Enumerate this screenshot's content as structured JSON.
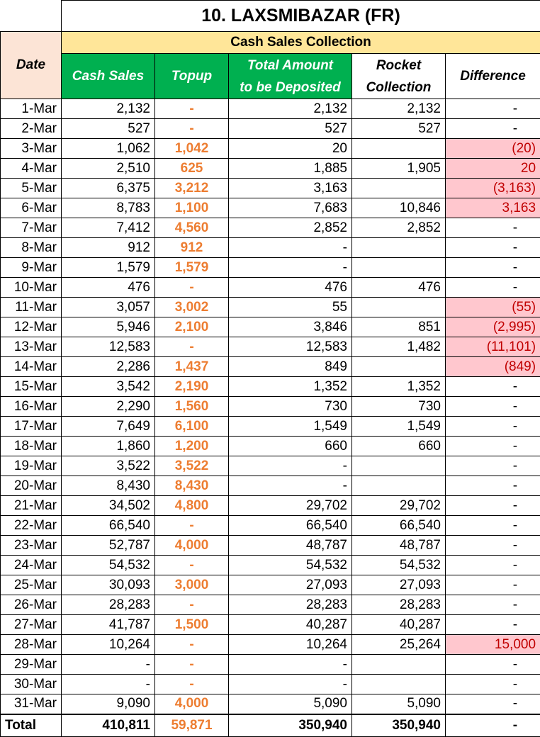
{
  "title": "10. LAXSMIBAZAR (FR)",
  "group_header": "Cash Sales Collection",
  "columns": [
    "Date",
    "Cash Sales",
    "Topup",
    "Total Amount\nto be Deposited",
    "Rocket\nCollection",
    "Difference"
  ],
  "rows": [
    [
      "1-Mar",
      "2,132",
      "-",
      "2,132",
      "2,132",
      "-"
    ],
    [
      "2-Mar",
      "527",
      "-",
      "527",
      "527",
      "-"
    ],
    [
      "3-Mar",
      "1,062",
      "1,042",
      "20",
      null,
      "(20)"
    ],
    [
      "4-Mar",
      "2,510",
      "625",
      "1,885",
      "1,905",
      "20"
    ],
    [
      "5-Mar",
      "6,375",
      "3,212",
      "3,163",
      null,
      "(3,163)"
    ],
    [
      "6-Mar",
      "8,783",
      "1,100",
      "7,683",
      "10,846",
      "3,163"
    ],
    [
      "7-Mar",
      "7,412",
      "4,560",
      "2,852",
      "2,852",
      "-"
    ],
    [
      "8-Mar",
      "912",
      "912",
      "-",
      null,
      "-"
    ],
    [
      "9-Mar",
      "1,579",
      "1,579",
      "-",
      null,
      "-"
    ],
    [
      "10-Mar",
      "476",
      "-",
      "476",
      "476",
      "-"
    ],
    [
      "11-Mar",
      "3,057",
      "3,002",
      "55",
      null,
      "(55)"
    ],
    [
      "12-Mar",
      "5,946",
      "2,100",
      "3,846",
      "851",
      "(2,995)"
    ],
    [
      "13-Mar",
      "12,583",
      "-",
      "12,583",
      "1,482",
      "(11,101)"
    ],
    [
      "14-Mar",
      "2,286",
      "1,437",
      "849",
      null,
      "(849)"
    ],
    [
      "15-Mar",
      "3,542",
      "2,190",
      "1,352",
      "1,352",
      "-"
    ],
    [
      "16-Mar",
      "2,290",
      "1,560",
      "730",
      "730",
      "-"
    ],
    [
      "17-Mar",
      "7,649",
      "6,100",
      "1,549",
      "1,549",
      "-"
    ],
    [
      "18-Mar",
      "1,860",
      "1,200",
      "660",
      "660",
      "-"
    ],
    [
      "19-Mar",
      "3,522",
      "3,522",
      "-",
      null,
      "-"
    ],
    [
      "20-Mar",
      "8,430",
      "8,430",
      "-",
      null,
      "-"
    ],
    [
      "21-Mar",
      "34,502",
      "4,800",
      "29,702",
      "29,702",
      "-"
    ],
    [
      "22-Mar",
      "66,540",
      "-",
      "66,540",
      "66,540",
      "-"
    ],
    [
      "23-Mar",
      "52,787",
      "4,000",
      "48,787",
      "48,787",
      "-"
    ],
    [
      "24-Mar",
      "54,532",
      "-",
      "54,532",
      "54,532",
      "-"
    ],
    [
      "25-Mar",
      "30,093",
      "3,000",
      "27,093",
      "27,093",
      "-"
    ],
    [
      "26-Mar",
      "28,283",
      "-",
      "28,283",
      "28,283",
      "-"
    ],
    [
      "27-Mar",
      "41,787",
      "1,500",
      "40,287",
      "40,287",
      "-"
    ],
    [
      "28-Mar",
      "10,264",
      "-",
      "10,264",
      "25,264",
      "15,000"
    ],
    [
      "29-Mar",
      "-",
      "-",
      "-",
      null,
      "-"
    ],
    [
      "30-Mar",
      "-",
      "-",
      "-",
      null,
      "-"
    ],
    [
      "31-Mar",
      "9,090",
      "4,000",
      "5,090",
      "5,090",
      "-"
    ]
  ],
  "total": [
    "Total",
    "410,811",
    "59,871",
    "350,940",
    "350,940",
    "-"
  ]
}
